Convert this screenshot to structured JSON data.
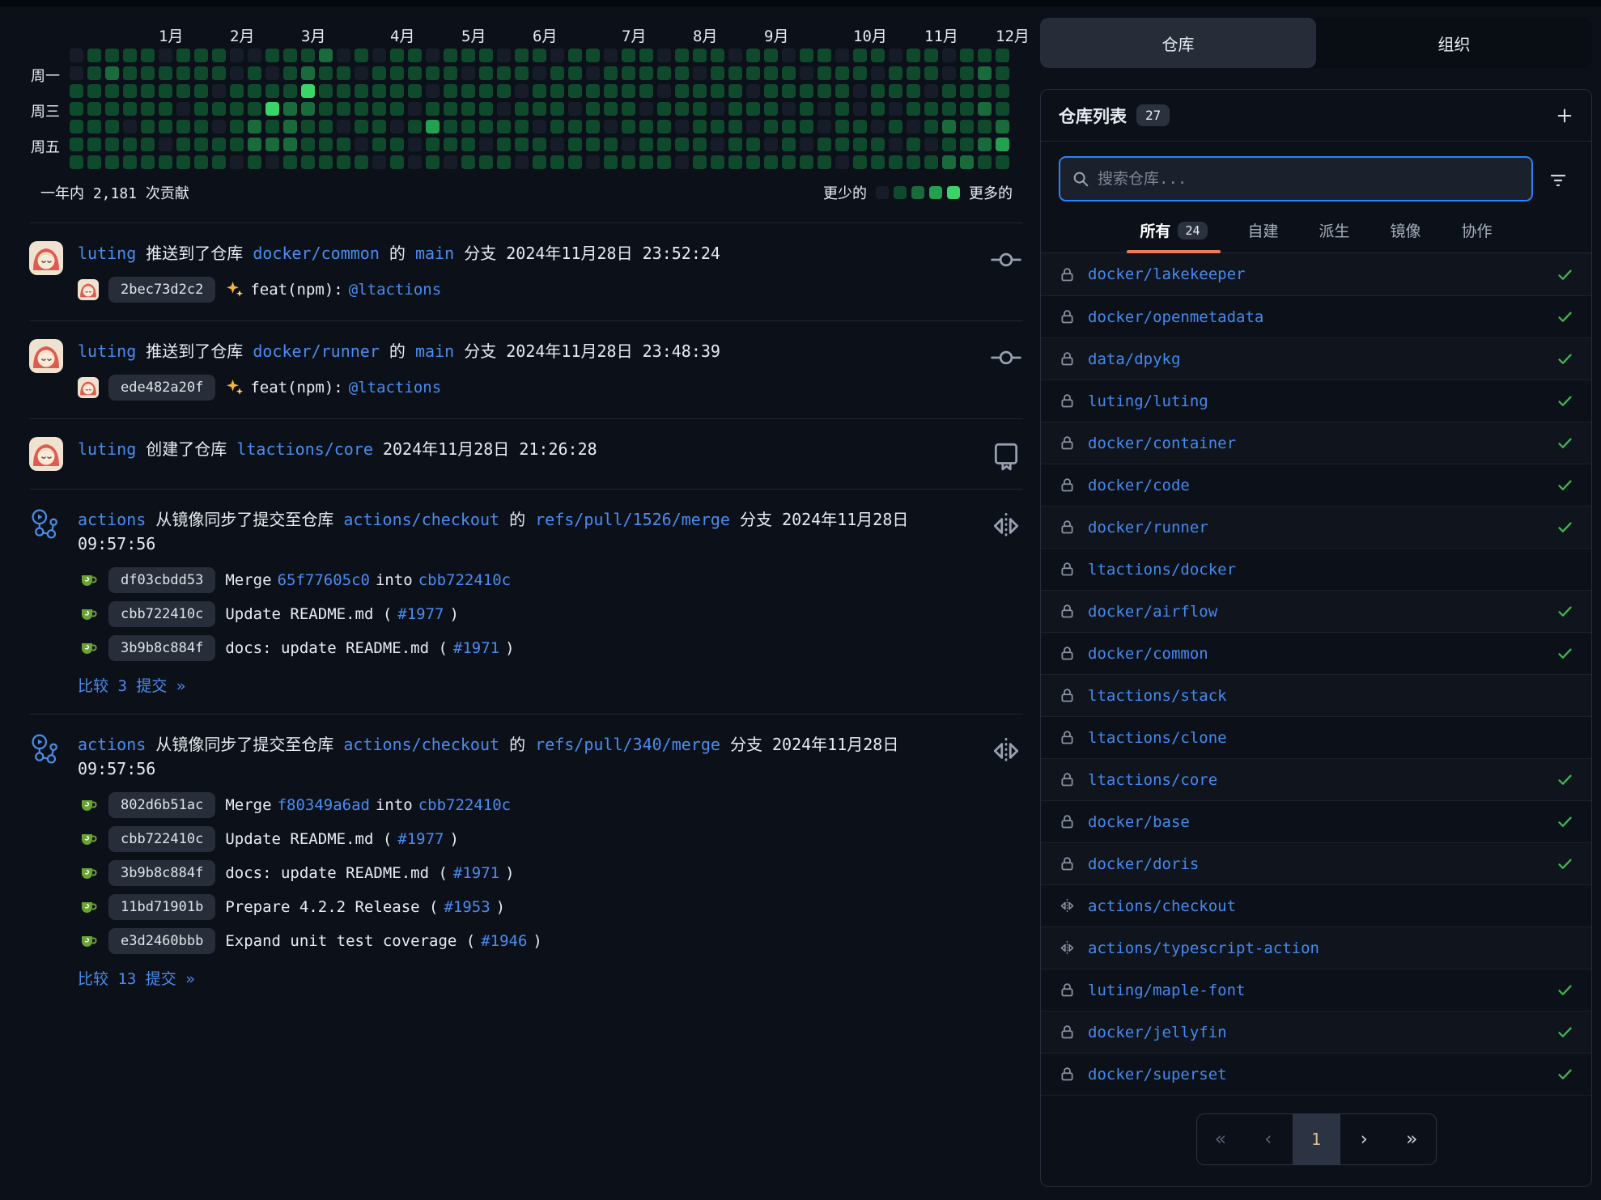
{
  "heatmap": {
    "months": [
      {
        "label": "1月",
        "col": 5
      },
      {
        "label": "2月",
        "col": 9
      },
      {
        "label": "3月",
        "col": 13
      },
      {
        "label": "4月",
        "col": 18
      },
      {
        "label": "5月",
        "col": 22
      },
      {
        "label": "6月",
        "col": 26
      },
      {
        "label": "7月",
        "col": 31
      },
      {
        "label": "8月",
        "col": 35
      },
      {
        "label": "9月",
        "col": 39
      },
      {
        "label": "10月",
        "col": 44
      },
      {
        "label": "11月",
        "col": 48
      },
      {
        "label": "12月",
        "col": 52
      }
    ],
    "weekdays": [
      {
        "label": "周一",
        "row": 1
      },
      {
        "label": "周三",
        "row": 3
      },
      {
        "label": "周五",
        "row": 5
      }
    ],
    "levels": [
      "0011111",
      "1111111",
      "1211111",
      "1111011",
      "1111111",
      "0111101",
      "1110111",
      "1111111",
      "1101011",
      "0011110",
      "0111221",
      "1014120",
      "1112221",
      "1242111",
      "2111111",
      "0111011",
      "1011101",
      "0111110",
      "1111011",
      "1110100",
      "0101311",
      "1111110",
      "1011111",
      "1111101",
      "0110111",
      "1101110",
      "1011011",
      "0111101",
      "1110111",
      "1011110",
      "0111011",
      "1111101",
      "1110111",
      "0101111",
      "1111010",
      "1011111",
      "1110101",
      "0111111",
      "1101011",
      "1111101",
      "0110111",
      "1011101",
      "1110011",
      "0111110",
      "1100111",
      "1011011",
      "0110101",
      "1111011",
      "1101101",
      "0011212",
      "1111112",
      "1212121",
      "1111231"
    ],
    "level_colors": [
      "#171d28",
      "#0f4a2d",
      "#1a6b3c",
      "#23a14e",
      "#3bd468"
    ],
    "summary": "一年内 2,181 次贡献",
    "legend": {
      "less": "更少的",
      "more": "更多的"
    }
  },
  "feed": [
    {
      "avatar": "luting",
      "icon": "commit",
      "header": [
        {
          "t": "luting",
          "l": 1
        },
        {
          "t": " 推送到了仓库 "
        },
        {
          "t": "docker/common",
          "l": 1
        },
        {
          "t": " 的 "
        },
        {
          "t": "main",
          "l": 1
        },
        {
          "t": " 分支 "
        },
        {
          "t": "2024年11月28日 23:52:24"
        }
      ],
      "commits": [
        {
          "avatar": "luting",
          "hash": "2bec73d2c2",
          "msg": [
            {
              "icon": "sparkles"
            },
            {
              "t": "feat(npm): "
            },
            {
              "t": "@ltactions",
              "l": 1
            }
          ]
        }
      ],
      "compare": null
    },
    {
      "avatar": "luting",
      "icon": "commit",
      "header": [
        {
          "t": "luting",
          "l": 1
        },
        {
          "t": " 推送到了仓库 "
        },
        {
          "t": "docker/runner",
          "l": 1
        },
        {
          "t": " 的 "
        },
        {
          "t": "main",
          "l": 1
        },
        {
          "t": " 分支 "
        },
        {
          "t": "2024年11月28日 23:48:39"
        }
      ],
      "commits": [
        {
          "avatar": "luting",
          "hash": "ede482a20f",
          "msg": [
            {
              "icon": "sparkles"
            },
            {
              "t": "feat(npm): "
            },
            {
              "t": "@ltactions",
              "l": 1
            }
          ]
        }
      ],
      "compare": null
    },
    {
      "avatar": "luting",
      "icon": "repo",
      "header": [
        {
          "t": "luting",
          "l": 1
        },
        {
          "t": " 创建了仓库 "
        },
        {
          "t": "ltactions/core",
          "l": 1
        },
        {
          "t": " 2024年11月28日 21:26:28"
        }
      ],
      "commits": [],
      "compare": null
    },
    {
      "avatar": "actions",
      "icon": "mirror",
      "header": [
        {
          "t": "actions",
          "l": 1
        },
        {
          "t": " 从镜像同步了提交至仓库 "
        },
        {
          "t": "actions/checkout",
          "l": 1
        },
        {
          "t": " 的 "
        },
        {
          "t": "refs/pull/1526/merge",
          "l": 1
        },
        {
          "t": " 分支 "
        },
        {
          "t": "2024年11月28日 09:57:56"
        }
      ],
      "commits": [
        {
          "avatar": "gitea",
          "hash": "df03cbdd53",
          "msg": [
            {
              "t": "Merge "
            },
            {
              "t": "65f77605c0",
              "l": 1
            },
            {
              "t": " into "
            },
            {
              "t": "cbb722410c",
              "l": 1
            }
          ]
        },
        {
          "avatar": "gitea",
          "hash": "cbb722410c",
          "msg": [
            {
              "t": "Update README.md ("
            },
            {
              "t": "#1977",
              "l": 1
            },
            {
              "t": ")"
            }
          ]
        },
        {
          "avatar": "gitea",
          "hash": "3b9b8c884f",
          "msg": [
            {
              "t": "docs: update README.md ("
            },
            {
              "t": "#1971",
              "l": 1
            },
            {
              "t": ")"
            }
          ]
        }
      ],
      "compare": "比较 3 提交 »"
    },
    {
      "avatar": "actions",
      "icon": "mirror",
      "header": [
        {
          "t": "actions",
          "l": 1
        },
        {
          "t": " 从镜像同步了提交至仓库 "
        },
        {
          "t": "actions/checkout",
          "l": 1
        },
        {
          "t": " 的 "
        },
        {
          "t": "refs/pull/340/merge",
          "l": 1
        },
        {
          "t": " 分支 "
        },
        {
          "t": "2024年11月28日 09:57:56"
        }
      ],
      "commits": [
        {
          "avatar": "gitea",
          "hash": "802d6b51ac",
          "msg": [
            {
              "t": "Merge "
            },
            {
              "t": "f80349a6ad",
              "l": 1
            },
            {
              "t": " into "
            },
            {
              "t": "cbb722410c",
              "l": 1
            }
          ]
        },
        {
          "avatar": "gitea",
          "hash": "cbb722410c",
          "msg": [
            {
              "t": "Update README.md ("
            },
            {
              "t": "#1977",
              "l": 1
            },
            {
              "t": ")"
            }
          ]
        },
        {
          "avatar": "gitea",
          "hash": "3b9b8c884f",
          "msg": [
            {
              "t": "docs: update README.md ("
            },
            {
              "t": "#1971",
              "l": 1
            },
            {
              "t": ")"
            }
          ]
        },
        {
          "avatar": "gitea",
          "hash": "11bd71901b",
          "msg": [
            {
              "t": "Prepare 4.2.2 Release ("
            },
            {
              "t": "#1953",
              "l": 1
            },
            {
              "t": ")"
            }
          ]
        },
        {
          "avatar": "gitea",
          "hash": "e3d2460bbb",
          "msg": [
            {
              "t": "Expand unit test coverage ("
            },
            {
              "t": "#1946",
              "l": 1
            },
            {
              "t": ")"
            }
          ]
        }
      ],
      "compare": "比较 13 提交 »"
    }
  ],
  "sidebar": {
    "tabs": [
      {
        "label": "仓库",
        "active": true
      },
      {
        "label": "组织",
        "active": false
      }
    ],
    "panel_title": "仓库列表",
    "panel_count": "27",
    "search": {
      "placeholder": "搜索仓库..."
    },
    "filters": [
      {
        "label": "所有",
        "badge": "24",
        "active": true
      },
      {
        "label": "自建"
      },
      {
        "label": "派生"
      },
      {
        "label": "镜像"
      },
      {
        "label": "协作"
      }
    ],
    "repos": [
      {
        "name": "docker/lakekeeper",
        "icon": "lock",
        "check": true
      },
      {
        "name": "docker/openmetadata",
        "icon": "lock",
        "check": true
      },
      {
        "name": "data/dpykg",
        "icon": "lock",
        "check": true
      },
      {
        "name": "luting/luting",
        "icon": "lock",
        "check": true
      },
      {
        "name": "docker/container",
        "icon": "lock",
        "check": true
      },
      {
        "name": "docker/code",
        "icon": "lock",
        "check": true
      },
      {
        "name": "docker/runner",
        "icon": "lock",
        "check": true
      },
      {
        "name": "ltactions/docker",
        "icon": "lock",
        "check": false
      },
      {
        "name": "docker/airflow",
        "icon": "lock",
        "check": true
      },
      {
        "name": "docker/common",
        "icon": "lock",
        "check": true
      },
      {
        "name": "ltactions/stack",
        "icon": "lock",
        "check": false
      },
      {
        "name": "ltactions/clone",
        "icon": "lock",
        "check": false
      },
      {
        "name": "ltactions/core",
        "icon": "lock",
        "check": true
      },
      {
        "name": "docker/base",
        "icon": "lock",
        "check": true
      },
      {
        "name": "docker/doris",
        "icon": "lock",
        "check": true
      },
      {
        "name": "actions/checkout",
        "icon": "mirror",
        "check": false
      },
      {
        "name": "actions/typescript-action",
        "icon": "mirror",
        "check": false
      },
      {
        "name": "luting/maple-font",
        "icon": "lock",
        "check": true
      },
      {
        "name": "docker/jellyfin",
        "icon": "lock",
        "check": true
      },
      {
        "name": "docker/superset",
        "icon": "lock",
        "check": true
      }
    ],
    "pagination": [
      {
        "t": "«",
        "state": "disabled"
      },
      {
        "t": "‹",
        "state": "disabled"
      },
      {
        "t": "1",
        "state": "active"
      },
      {
        "t": "›",
        "state": ""
      },
      {
        "t": "»",
        "state": ""
      }
    ]
  },
  "colors": {
    "link": "#4a8cf0",
    "check_green": "#3fb950",
    "accent_coral": "#ee7c5c",
    "focus_blue": "#2f81f7",
    "page_bg": "#0c1119"
  }
}
